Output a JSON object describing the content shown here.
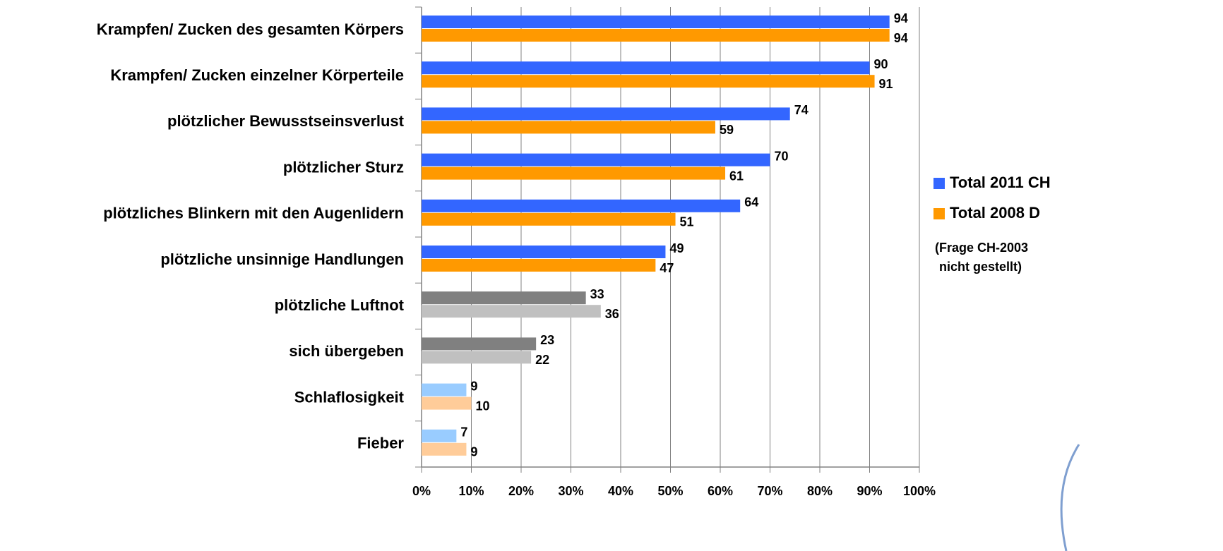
{
  "chart_data": {
    "type": "bar",
    "orientation": "horizontal",
    "categories": [
      "Krampfen/ Zucken des gesamten Körpers",
      "Krampfen/ Zucken einzelner Körperteile",
      "plötzlicher Bewusstseinsverlust",
      "plötzlicher Sturz",
      "plötzliches Blinkern mit den Augenlidern",
      "plötzliche unsinnige Handlungen",
      "plötzliche Luftnot",
      "sich übergeben",
      "Schlaflosigkeit",
      "Fieber"
    ],
    "series": [
      {
        "name": "Total 2011 CH",
        "color": "#3366ff",
        "values": [
          94,
          90,
          74,
          70,
          64,
          49,
          33,
          23,
          9,
          7
        ],
        "colors": [
          "#3366ff",
          "#3366ff",
          "#3366ff",
          "#3366ff",
          "#3366ff",
          "#3366ff",
          "#808080",
          "#808080",
          "#99ccff",
          "#99ccff"
        ]
      },
      {
        "name": "Total 2008 D",
        "color": "#ff9900",
        "values": [
          94,
          91,
          59,
          61,
          51,
          47,
          36,
          22,
          10,
          9
        ],
        "colors": [
          "#ff9900",
          "#ff9900",
          "#ff9900",
          "#ff9900",
          "#ff9900",
          "#ff9900",
          "#c0c0c0",
          "#c0c0c0",
          "#ffcc99",
          "#ffcc99"
        ]
      }
    ],
    "xlim": [
      0,
      100
    ],
    "xticks": [
      {
        "value": 0,
        "label": "0%"
      },
      {
        "value": 10,
        "label": "10%"
      },
      {
        "value": 20,
        "label": "20%"
      },
      {
        "value": 30,
        "label": "30%"
      },
      {
        "value": 40,
        "label": "40%"
      },
      {
        "value": 50,
        "label": "50%"
      },
      {
        "value": 60,
        "label": "60%"
      },
      {
        "value": 70,
        "label": "70%"
      },
      {
        "value": 80,
        "label": "80%"
      },
      {
        "value": 90,
        "label": "90%"
      },
      {
        "value": 100,
        "label": "100%"
      }
    ],
    "grid": true,
    "legend": "right",
    "note": [
      "(Frage CH-2003",
      "nicht gestellt)"
    ]
  }
}
